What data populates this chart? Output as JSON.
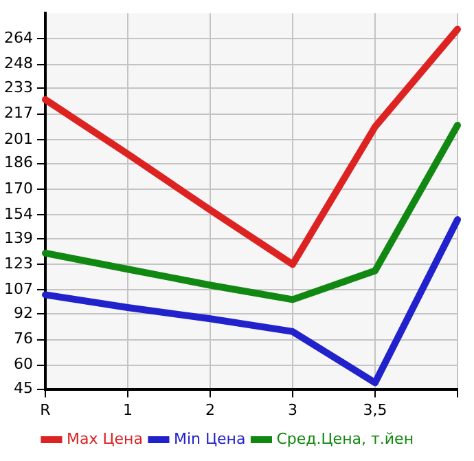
{
  "chart_data": {
    "type": "line",
    "categories": [
      "R",
      "1",
      "2",
      "3",
      "3,5",
      null
    ],
    "series": [
      {
        "name": "Max Цена",
        "color": "#dd2222",
        "values": [
          226,
          192,
          157,
          123,
          209,
          270
        ]
      },
      {
        "name": "Min Цена",
        "color": "#2222cc",
        "values": [
          104,
          96,
          89,
          81,
          49,
          151
        ]
      },
      {
        "name": "Сред.Цена, т.йен",
        "color": "#118811",
        "values": [
          130,
          120,
          110,
          101,
          119,
          210
        ]
      }
    ],
    "ylim": [
      45,
      280
    ],
    "yticks": [
      45,
      60,
      76,
      92,
      107,
      123,
      139,
      154,
      170,
      186,
      201,
      217,
      233,
      248,
      264
    ],
    "grid": true,
    "legend": "bottom",
    "marker": "none",
    "line_style": "solid"
  }
}
